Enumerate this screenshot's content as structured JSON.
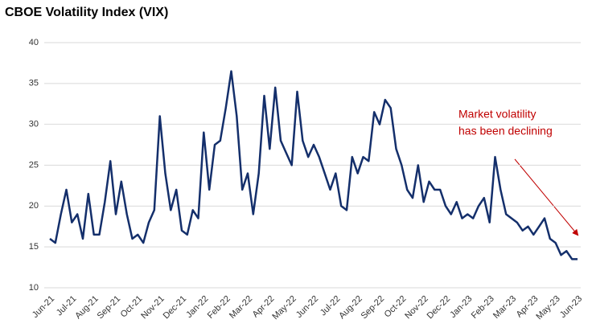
{
  "chart_data": {
    "type": "line",
    "title": "CBOE Volatility Index (VIX)",
    "annotation": [
      "Market volatility",
      "has been declining"
    ],
    "categories": [
      "Jun-21",
      null,
      null,
      null,
      "Jul-21",
      null,
      null,
      null,
      "Aug-21",
      null,
      null,
      null,
      "Sep-21",
      null,
      null,
      null,
      "Oct-21",
      null,
      null,
      null,
      "Nov-21",
      null,
      null,
      null,
      "Dec-21",
      null,
      null,
      null,
      "Jan-22",
      null,
      null,
      null,
      "Feb-22",
      null,
      null,
      null,
      "Mar-22",
      null,
      null,
      null,
      "Apr-22",
      null,
      null,
      null,
      "May-22",
      null,
      null,
      null,
      "Jun-22",
      null,
      null,
      null,
      "Jul-22",
      null,
      null,
      null,
      "Aug-22",
      null,
      null,
      null,
      "Sep-22",
      null,
      null,
      null,
      "Oct-22",
      null,
      null,
      null,
      "Nov-22",
      null,
      null,
      null,
      "Dec-22",
      null,
      null,
      null,
      "Jan-23",
      null,
      null,
      null,
      "Feb-23",
      null,
      null,
      null,
      "Mar-23",
      null,
      null,
      null,
      "Apr-23",
      null,
      null,
      null,
      "May-23",
      null,
      null,
      null,
      "Jun-23"
    ],
    "series": [
      {
        "name": "VIX",
        "color": "#142f6b",
        "values": [
          16,
          15.5,
          19,
          22,
          18,
          19,
          16,
          21.5,
          16.5,
          16.5,
          20.5,
          25.5,
          19,
          23,
          19,
          16,
          16.5,
          15.5,
          18,
          19.5,
          31,
          24,
          19.5,
          22,
          17,
          16.5,
          19.5,
          18.5,
          29,
          22,
          27.5,
          28,
          32,
          36.5,
          31,
          22,
          24,
          19,
          24,
          33.5,
          27,
          34.5,
          28,
          26.5,
          25,
          34,
          28,
          26,
          27.5,
          26,
          24,
          22,
          24,
          20,
          19.5,
          26,
          24,
          26,
          25.5,
          31.5,
          30,
          33,
          32,
          27,
          25,
          22,
          21,
          25,
          20.5,
          23,
          22,
          22,
          20,
          19,
          20.5,
          18.5,
          19,
          18.5,
          20,
          21,
          18,
          26,
          22,
          19,
          18.5,
          18,
          17,
          17.5,
          16.5,
          17.5,
          18.5,
          16,
          15.5,
          14,
          14.5,
          13.5,
          13.5
        ]
      }
    ],
    "ylim": [
      10,
      40
    ],
    "yticks": [
      10,
      15,
      20,
      25,
      30,
      35,
      40
    ],
    "grid": true
  }
}
